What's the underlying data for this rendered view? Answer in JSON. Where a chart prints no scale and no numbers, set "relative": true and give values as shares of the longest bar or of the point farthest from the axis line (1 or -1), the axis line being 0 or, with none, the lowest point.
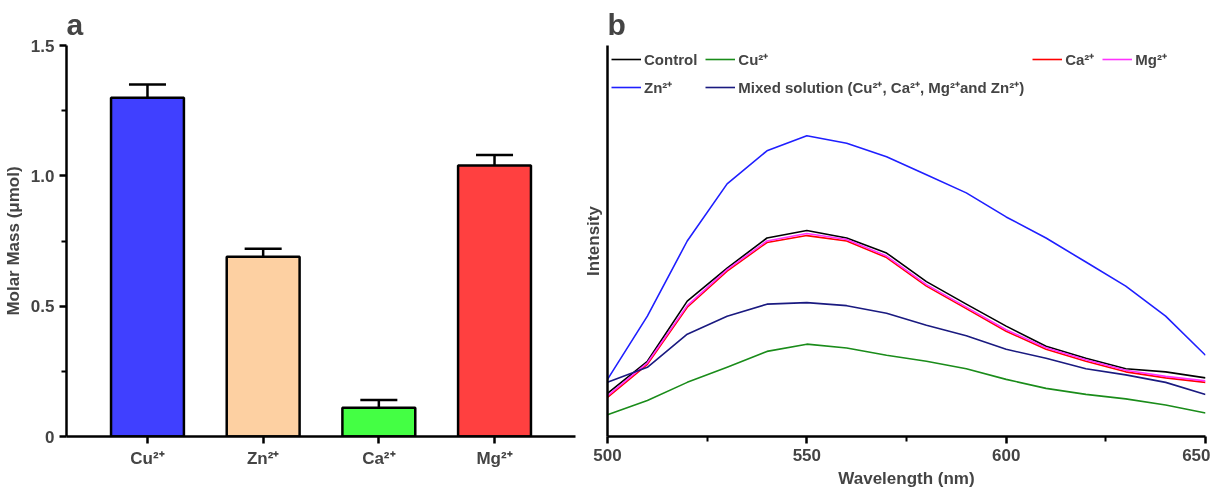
{
  "chart_data": [
    {
      "type": "bar",
      "title": "a",
      "ylabel": "Molar Mass (μmol)",
      "categories": [
        "Cu²⁺",
        "Zn²⁺",
        "Ca²⁺",
        "Mg²⁺"
      ],
      "values": [
        1.3,
        0.69,
        0.11,
        1.04
      ],
      "colors": [
        "#4040ff",
        "#fdd0a2",
        "#44ff44",
        "#ff4040"
      ],
      "errors": [
        [
          1.3,
          1.35
        ],
        [
          0.69,
          0.72
        ],
        [
          0.11,
          0.14
        ],
        [
          1.04,
          1.08
        ]
      ],
      "ylim": [
        0,
        1.5
      ],
      "yticks": [
        0,
        {
          "value": 0.25,
          "label": null
        },
        0.5,
        {
          "value": 0.75,
          "label": null
        },
        {
          "value": 1.0,
          "label": "1.0"
        },
        {
          "value": 1.25,
          "label": null
        },
        1.5
      ]
    },
    {
      "type": "line",
      "title": "b",
      "xlabel": "Wavelength (nm)",
      "ylabel": "Intensity",
      "relative": true,
      "legend": "top",
      "x": [
        500,
        510,
        520,
        530,
        540,
        550,
        560,
        570,
        580,
        590,
        600,
        610,
        620,
        630,
        640,
        650
      ],
      "xlim": [
        500,
        650
      ],
      "xticks": [
        500,
        {
          "value": 525,
          "label": null
        },
        550,
        {
          "value": 575,
          "label": null
        },
        600,
        {
          "value": 625,
          "label": null
        },
        650
      ],
      "series": [
        {
          "name": "Control",
          "color": "#000000",
          "values": [
            0.143,
            0.25,
            0.45,
            0.56,
            0.66,
            0.685,
            0.66,
            0.61,
            0.515,
            0.44,
            0.367,
            0.3,
            0.26,
            0.225,
            0.215,
            0.195
          ]
        },
        {
          "name": "Cu²⁺",
          "color": "#1a8c1a",
          "values": [
            0.072,
            0.12,
            0.18,
            0.23,
            0.283,
            0.307,
            0.294,
            0.27,
            0.25,
            0.225,
            0.19,
            0.16,
            0.14,
            0.125,
            0.105,
            0.078
          ]
        },
        {
          "name": "Ca²⁺",
          "color": "#ff0000",
          "values": [
            0.13,
            0.24,
            0.43,
            0.55,
            0.645,
            0.668,
            0.65,
            0.595,
            0.5,
            0.425,
            0.35,
            0.29,
            0.25,
            0.215,
            0.195,
            0.18
          ]
        },
        {
          "name": "Mg²⁺",
          "color": "#ff33ff",
          "values": [
            0.135,
            0.245,
            0.435,
            0.555,
            0.65,
            0.675,
            0.655,
            0.6,
            0.505,
            0.43,
            0.355,
            0.295,
            0.255,
            0.22,
            0.2,
            0.185
          ]
        },
        {
          "name": "Zn²⁺",
          "color": "#1f1fff",
          "values": [
            0.19,
            0.4,
            0.65,
            0.84,
            0.95,
            1.0,
            0.975,
            0.93,
            0.87,
            0.81,
            0.73,
            0.66,
            0.58,
            0.5,
            0.4,
            0.27
          ]
        },
        {
          "name": "Mixed solution (Cu²⁺, Ca²⁺, Mg²⁺and Zn²⁺)",
          "color": "#1a1a80",
          "values": [
            0.18,
            0.23,
            0.34,
            0.4,
            0.44,
            0.445,
            0.435,
            0.41,
            0.37,
            0.335,
            0.29,
            0.26,
            0.225,
            0.205,
            0.18,
            0.14
          ]
        }
      ]
    }
  ]
}
